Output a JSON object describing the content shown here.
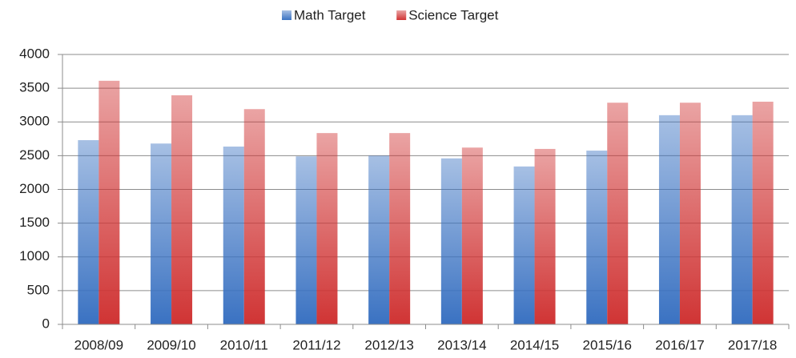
{
  "chart_data": {
    "type": "bar",
    "categories": [
      "2008/09",
      "2009/10",
      "2010/11",
      "2011/12",
      "2012/13",
      "2013/14",
      "2014/15",
      "2015/16",
      "2016/17",
      "2017/18"
    ],
    "series": [
      {
        "name": "Math Target",
        "color": "#3a72c2",
        "values": [
          2730,
          2680,
          2635,
          2490,
          2500,
          2460,
          2340,
          2575,
          3100,
          3100
        ]
      },
      {
        "name": "Science Target",
        "color": "#d03434",
        "values": [
          3610,
          3395,
          3190,
          2835,
          2835,
          2620,
          2600,
          3285,
          3285,
          3300
        ]
      }
    ],
    "ylim": [
      0,
      4000
    ],
    "yticks": [
      0,
      500,
      1000,
      1500,
      2000,
      2500,
      3000,
      3500,
      4000
    ],
    "grid": true,
    "legend": "top"
  }
}
